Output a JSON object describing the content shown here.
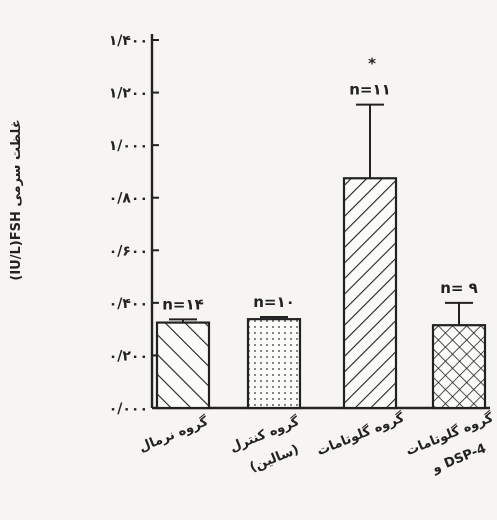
{
  "chart_data": {
    "type": "bar",
    "ylabel": "(IU/L)FSH غلظت سرمی",
    "ylim": [
      0,
      1.4
    ],
    "y_ticks": [
      0,
      0.2,
      0.4,
      0.6,
      0.8,
      1.0,
      1.2,
      1.4
    ],
    "y_tick_labels": [
      "۰/۰۰۰",
      "۰/۲۰۰",
      "۰/۴۰۰",
      "۰/۶۰۰",
      "۰/۸۰۰",
      "۱/۰۰۰",
      "۱/۲۰۰",
      "۱/۴۰۰"
    ],
    "categories": [
      [
        "گروه نرمال"
      ],
      [
        "گروه کنترل",
        "(سالین)"
      ],
      [
        "گروه گلوتامات"
      ],
      [
        "گروه گلوتامات",
        "و DSP-4"
      ]
    ],
    "values": [
      0.325,
      0.338,
      0.874,
      0.315
    ],
    "error": [
      0.012,
      0.008,
      0.28,
      0.085
    ],
    "n_labels": [
      "n=۱۴",
      "n=۱۰",
      "n=۱۱",
      "n= ۹"
    ],
    "significance": [
      "",
      "",
      "*",
      ""
    ],
    "patterns": [
      "diagonal",
      "dots",
      "diagonal-dense",
      "crosshatch"
    ],
    "grid": false
  }
}
